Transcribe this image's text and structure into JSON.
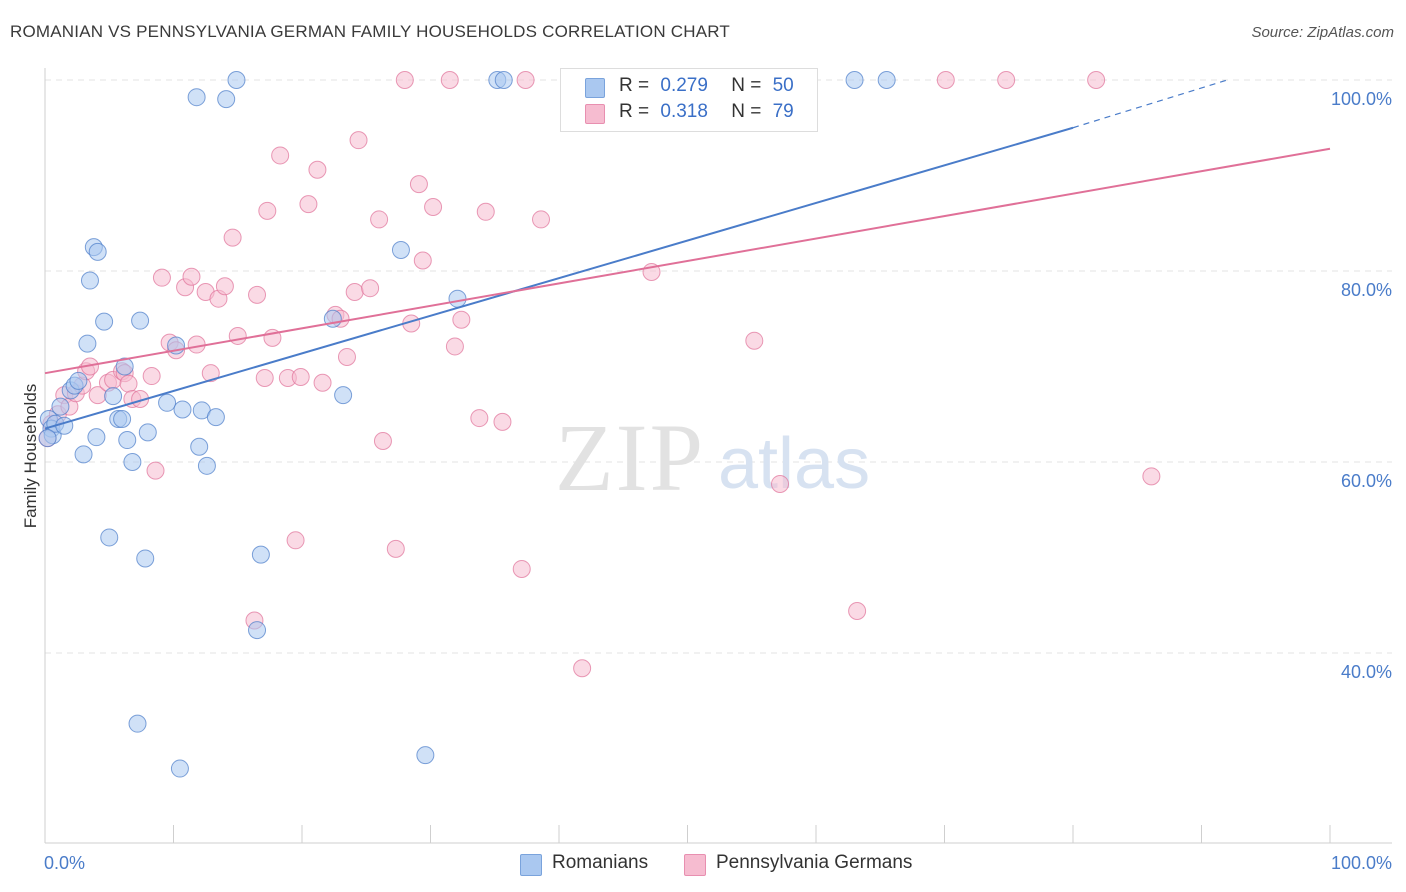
{
  "title": "ROMANIAN VS PENNSYLVANIA GERMAN FAMILY HOUSEHOLDS CORRELATION CHART",
  "source": "Source: ZipAtlas.com",
  "watermark": {
    "zip": "ZIP",
    "atlas": "atlas"
  },
  "legend": {
    "rows": [
      {
        "r_label": "R =",
        "r_value": "0.279",
        "n_label": "N =",
        "n_value": "50",
        "color": "#aac8f0"
      },
      {
        "r_label": "R =",
        "r_value": "0.318",
        "n_label": "N =",
        "n_value": "79",
        "color": "#f6bcd0"
      }
    ]
  },
  "bottom_legend": [
    {
      "label": "Romanians",
      "color": "#aac8f0"
    },
    {
      "label": "Pennsylvania Germans",
      "color": "#f6bcd0"
    }
  ],
  "chart_data": {
    "type": "scatter",
    "title": "ROMANIAN VS PENNSYLVANIA GERMAN FAMILY HOUSEHOLDS CORRELATION CHART",
    "xlabel": "",
    "ylabel": "Family Households",
    "xlim": [
      0,
      100
    ],
    "ylim": [
      20,
      101
    ],
    "x_tick_labels": [
      "0.0%",
      "100.0%"
    ],
    "y_ticks": [
      40,
      60,
      80,
      100
    ],
    "y_tick_labels": [
      "40.0%",
      "60.0%",
      "80.0%",
      "100.0%"
    ],
    "grid": true,
    "series": [
      {
        "name": "Romanians",
        "color": "#4a7cc9",
        "fill": "#aac8f0",
        "r": 0.279,
        "n": 50,
        "trend": {
          "x0": 0,
          "y0": 63.5,
          "x1": 80,
          "y1": 95.0,
          "dash_to_x": 92,
          "dash_to_y": 100
        },
        "points": [
          [
            0.3,
            64.5
          ],
          [
            0.5,
            63.5
          ],
          [
            0.6,
            62.8
          ],
          [
            0.8,
            64.0
          ],
          [
            1.2,
            65.8
          ],
          [
            1.5,
            63.8
          ],
          [
            2.0,
            67.5
          ],
          [
            2.3,
            68.0
          ],
          [
            2.6,
            68.5
          ],
          [
            3.0,
            60.8
          ],
          [
            3.3,
            72.4
          ],
          [
            3.5,
            79.0
          ],
          [
            3.8,
            82.5
          ],
          [
            4.1,
            82.0
          ],
          [
            4.0,
            62.6
          ],
          [
            4.6,
            74.7
          ],
          [
            5.0,
            52.1
          ],
          [
            5.3,
            66.9
          ],
          [
            5.7,
            64.5
          ],
          [
            6.0,
            64.5
          ],
          [
            6.2,
            70.0
          ],
          [
            6.4,
            62.3
          ],
          [
            6.8,
            60.0
          ],
          [
            7.2,
            32.6
          ],
          [
            7.4,
            74.8
          ],
          [
            7.8,
            49.9
          ],
          [
            8.0,
            63.1
          ],
          [
            9.5,
            66.2
          ],
          [
            10.2,
            72.2
          ],
          [
            10.5,
            27.9
          ],
          [
            10.7,
            65.5
          ],
          [
            11.8,
            98.2
          ],
          [
            12.0,
            61.6
          ],
          [
            12.2,
            65.4
          ],
          [
            12.6,
            59.6
          ],
          [
            13.3,
            64.7
          ],
          [
            14.1,
            98.0
          ],
          [
            14.9,
            100.0
          ],
          [
            16.5,
            42.4
          ],
          [
            16.8,
            50.3
          ],
          [
            22.4,
            75.0
          ],
          [
            23.2,
            67.0
          ],
          [
            27.7,
            82.2
          ],
          [
            29.6,
            29.3
          ],
          [
            32.1,
            77.1
          ],
          [
            35.2,
            100.0
          ],
          [
            35.7,
            100.0
          ],
          [
            63.0,
            100.0
          ],
          [
            65.5,
            100.0
          ],
          [
            0.2,
            62.5
          ]
        ]
      },
      {
        "name": "Pennsylvania Germans",
        "color": "#e07098",
        "fill": "#f6bcd0",
        "r": 0.318,
        "n": 79,
        "trend": {
          "x0": 0,
          "y0": 69.3,
          "x1": 100,
          "y1": 92.8
        },
        "points": [
          [
            0.2,
            62.5
          ],
          [
            0.5,
            64.0
          ],
          [
            1.0,
            65.0
          ],
          [
            1.5,
            67.0
          ],
          [
            1.9,
            65.8
          ],
          [
            2.4,
            67.2
          ],
          [
            2.9,
            68.0
          ],
          [
            3.2,
            69.5
          ],
          [
            3.5,
            70.0
          ],
          [
            4.1,
            67.0
          ],
          [
            4.9,
            68.3
          ],
          [
            5.3,
            68.6
          ],
          [
            6.0,
            69.5
          ],
          [
            6.2,
            69.3
          ],
          [
            6.5,
            68.2
          ],
          [
            6.8,
            66.6
          ],
          [
            7.4,
            66.6
          ],
          [
            8.3,
            69.0
          ],
          [
            8.6,
            59.1
          ],
          [
            9.1,
            79.3
          ],
          [
            9.7,
            72.5
          ],
          [
            10.2,
            71.7
          ],
          [
            10.9,
            78.3
          ],
          [
            11.4,
            79.4
          ],
          [
            11.8,
            72.3
          ],
          [
            12.5,
            77.8
          ],
          [
            12.9,
            69.3
          ],
          [
            13.5,
            77.1
          ],
          [
            14.0,
            78.4
          ],
          [
            14.6,
            83.5
          ],
          [
            15.0,
            73.2
          ],
          [
            16.3,
            43.4
          ],
          [
            16.5,
            77.5
          ],
          [
            17.1,
            68.8
          ],
          [
            17.3,
            86.3
          ],
          [
            17.7,
            73.0
          ],
          [
            18.3,
            92.1
          ],
          [
            18.9,
            68.8
          ],
          [
            19.5,
            51.8
          ],
          [
            19.9,
            68.9
          ],
          [
            20.5,
            87.0
          ],
          [
            21.2,
            90.6
          ],
          [
            21.6,
            68.3
          ],
          [
            22.6,
            75.4
          ],
          [
            23.0,
            75.0
          ],
          [
            23.5,
            71.0
          ],
          [
            24.1,
            77.8
          ],
          [
            24.4,
            93.7
          ],
          [
            25.3,
            78.2
          ],
          [
            26.0,
            85.4
          ],
          [
            26.3,
            62.2
          ],
          [
            27.3,
            50.9
          ],
          [
            28.0,
            100.0
          ],
          [
            28.5,
            74.5
          ],
          [
            29.1,
            89.1
          ],
          [
            29.4,
            81.1
          ],
          [
            30.2,
            86.7
          ],
          [
            31.5,
            100.0
          ],
          [
            31.9,
            72.1
          ],
          [
            32.4,
            74.9
          ],
          [
            33.8,
            64.6
          ],
          [
            34.3,
            86.2
          ],
          [
            35.6,
            64.2
          ],
          [
            37.1,
            48.8
          ],
          [
            37.4,
            100.0
          ],
          [
            38.6,
            85.4
          ],
          [
            41.3,
            100.0
          ],
          [
            41.8,
            38.4
          ],
          [
            47.0,
            100.0
          ],
          [
            47.2,
            79.9
          ],
          [
            53.2,
            100.0
          ],
          [
            55.2,
            72.7
          ],
          [
            57.2,
            57.7
          ],
          [
            59.0,
            100.0
          ],
          [
            63.2,
            44.4
          ],
          [
            70.1,
            100.0
          ],
          [
            74.8,
            100.0
          ],
          [
            81.8,
            100.0
          ],
          [
            86.1,
            58.5
          ]
        ]
      }
    ]
  }
}
